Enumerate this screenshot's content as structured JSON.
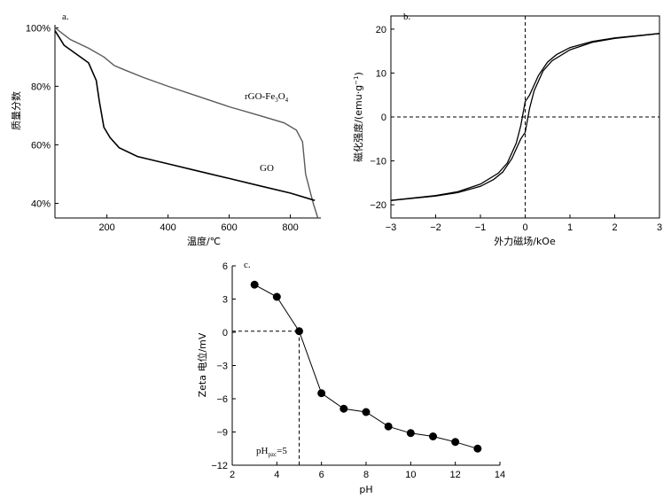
{
  "chart_data": [
    {
      "type": "line",
      "panel_label": "a.",
      "xlabel": "温度/℃",
      "ylabel": "质量分数",
      "xlim": [
        30,
        900
      ],
      "ylim": [
        35,
        101
      ],
      "xticks": [
        "200",
        "400",
        "600",
        "800"
      ],
      "yticks": [
        "40%",
        "60%",
        "80%",
        "100%"
      ],
      "series": [
        {
          "name": "rGO-Fe3O4",
          "label_text": "rGO-Fe",
          "label_sub1": "3",
          "label_mid": "O",
          "label_sub2": "4",
          "color": "#5a5a5a",
          "x": [
            30,
            80,
            140,
            190,
            225,
            260,
            320,
            400,
            500,
            600,
            700,
            780,
            820,
            840,
            850,
            860,
            875,
            890
          ],
          "y": [
            100,
            96,
            93,
            90,
            87,
            85.5,
            83,
            80,
            76.5,
            73,
            70,
            67.5,
            65,
            61,
            50,
            46,
            40,
            35
          ]
        },
        {
          "name": "GO",
          "label_text": "GO",
          "color": "#000000",
          "x": [
            30,
            60,
            100,
            140,
            165,
            175,
            190,
            210,
            240,
            300,
            400,
            500,
            600,
            700,
            800,
            880
          ],
          "y": [
            99,
            94,
            91,
            88,
            82,
            75,
            66,
            62.5,
            59,
            56,
            53.5,
            51,
            48.5,
            46,
            43.5,
            41
          ]
        }
      ]
    },
    {
      "type": "line",
      "panel_label": "b.",
      "xlabel": "外力磁场/kOe",
      "ylabel_main": "磁化强度/(emu·g",
      "ylabel_sup": "−1",
      "ylabel_end": ")",
      "xlim": [
        -3,
        3
      ],
      "ylim": [
        -23,
        23
      ],
      "xticks": [
        "−3",
        "−2",
        "−1",
        "0",
        "1",
        "2",
        "3"
      ],
      "yticks": [
        "−20",
        "−10",
        "0",
        "10",
        "20"
      ],
      "series": [
        {
          "name": "descending branch",
          "color": "#000000",
          "x": [
            3,
            2,
            1.5,
            1,
            0.7,
            0.5,
            0.3,
            0.1,
            0,
            -0.1,
            -0.2,
            -0.4,
            -0.6,
            -1,
            -1.5,
            -2,
            -3
          ],
          "y": [
            19,
            18,
            17.2,
            15.8,
            14.2,
            12.5,
            9.5,
            5,
            3.5,
            -2,
            -6,
            -10.5,
            -12.8,
            -15.3,
            -17,
            -17.9,
            -19
          ]
        },
        {
          "name": "ascending branch",
          "color": "#000000",
          "x": [
            -3,
            -2,
            -1.5,
            -1,
            -0.7,
            -0.5,
            -0.3,
            -0.1,
            0,
            0.1,
            0.2,
            0.4,
            0.6,
            1,
            1.5,
            2,
            3
          ],
          "y": [
            -19,
            -18,
            -17.2,
            -15.8,
            -14.2,
            -12.5,
            -9.5,
            -5,
            -3.5,
            2,
            6,
            10.5,
            12.8,
            15.3,
            17,
            17.9,
            19
          ]
        }
      ]
    },
    {
      "type": "line",
      "panel_label": "c.",
      "xlabel": "pH",
      "ylabel": "Zeta 电位/mV",
      "xlim": [
        2,
        14
      ],
      "ylim": [
        -12,
        6
      ],
      "xticks": [
        "2",
        "4",
        "6",
        "8",
        "10",
        "12",
        "14"
      ],
      "yticks": [
        "−12",
        "−9",
        "−6",
        "−3",
        "0",
        "3",
        "6"
      ],
      "series": [
        {
          "name": "Zeta potential",
          "color": "#000000",
          "x": [
            3,
            4,
            5,
            6,
            7,
            8,
            9,
            10,
            11,
            12,
            13
          ],
          "y": [
            4.3,
            3.2,
            0.1,
            -5.5,
            -6.9,
            -7.2,
            -8.5,
            -9.1,
            -9.4,
            -9.9,
            -10.5
          ]
        }
      ],
      "annotation": {
        "text": "pH",
        "sub": "pzc",
        "rest": "=5",
        "x": 5
      }
    }
  ]
}
